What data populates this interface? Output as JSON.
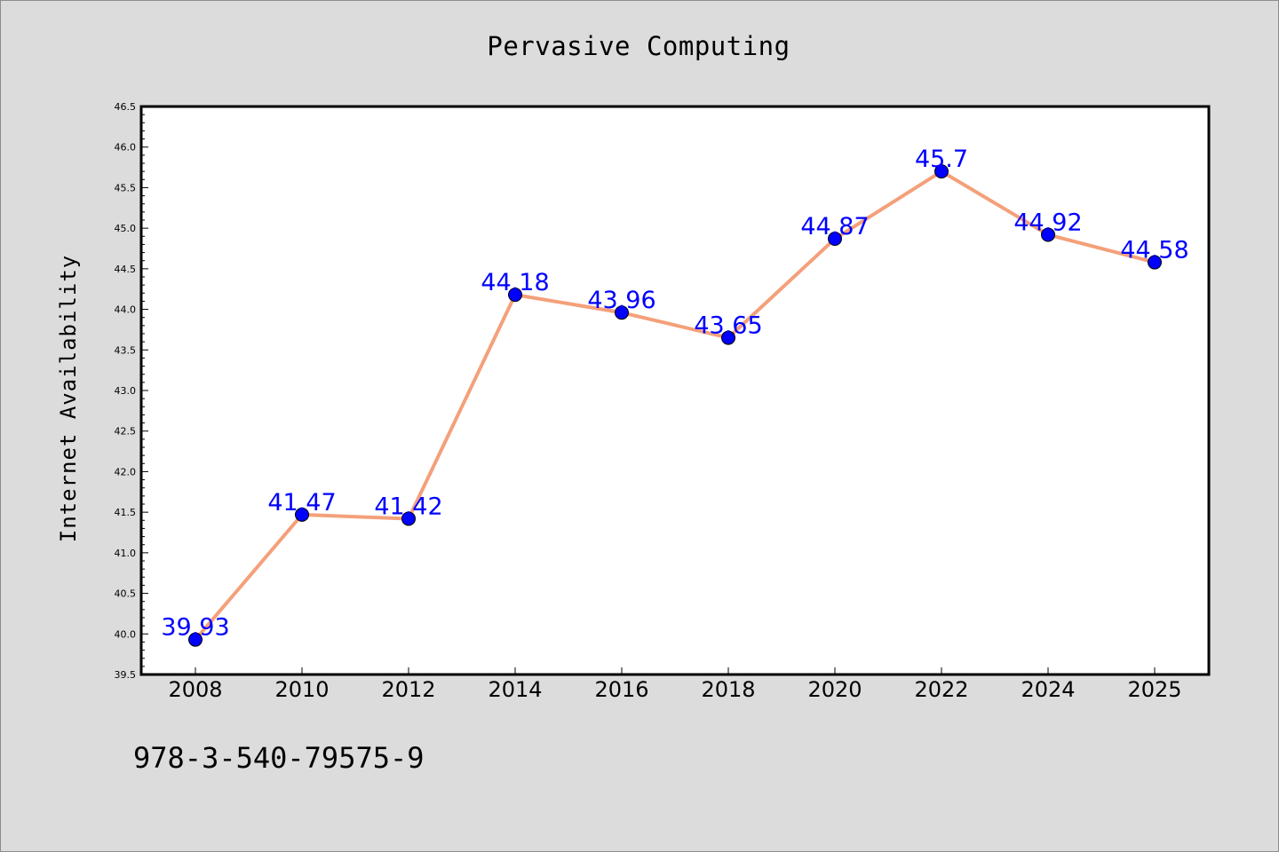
{
  "chart_data": {
    "type": "line",
    "title": "Pervasive Computing",
    "xlabel": "",
    "ylabel": "Internet Availability",
    "categories": [
      "2008",
      "2010",
      "2012",
      "2014",
      "2016",
      "2018",
      "2020",
      "2022",
      "2024",
      "2025"
    ],
    "series": [
      {
        "values": [
          39.93,
          41.47,
          41.42,
          44.18,
          43.96,
          43.65,
          44.87,
          45.7,
          44.92,
          44.58
        ],
        "labels": [
          "39.93",
          "41.47",
          "41.42",
          "44.18",
          "43.96",
          "43.65",
          "44.87",
          "45.7",
          "44.92",
          "44.58"
        ],
        "line_color": "#f4a07a",
        "marker_color": "#0000ff"
      }
    ],
    "ylim": [
      39.5,
      46.5
    ],
    "yticks": [
      "39.5",
      "40.0",
      "40.5",
      "41.0",
      "41.5",
      "42.0",
      "42.5",
      "43.0",
      "43.5",
      "44.0",
      "44.5",
      "45.0",
      "45.5",
      "46.0",
      "46.5"
    ],
    "grid": false,
    "legend": "none",
    "footnote": "978-3-540-79575-9"
  }
}
